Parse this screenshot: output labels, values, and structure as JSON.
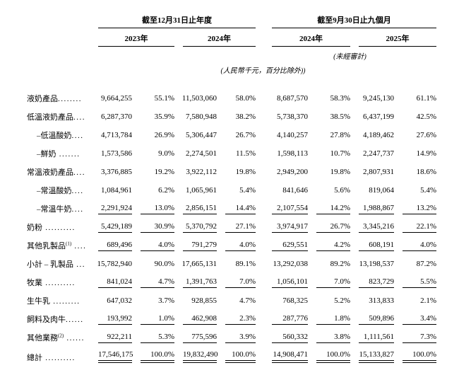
{
  "page": {
    "background": "#ffffff",
    "text_color": "#000000",
    "rule_color": "#000000"
  },
  "table": {
    "column_groups": [
      {
        "title": "截至12月31日止年度",
        "years": [
          "2023年",
          "2024年"
        ],
        "note": ""
      },
      {
        "title": "截至9月30日止九個月",
        "years": [
          "2024年",
          "2025年"
        ],
        "note": "(未經審計)"
      }
    ],
    "unit_note": "(人民幣千元，百分比除外))",
    "rows": [
      {
        "label": "液奶產品",
        "sup": "",
        "dots": "........",
        "indent": 0,
        "bold": true,
        "rule": "none",
        "values": [
          "9,664,255",
          "55.1%",
          "11,503,060",
          "58.0%",
          "8,687,570",
          "58.3%",
          "9,245,130",
          "61.1%"
        ]
      },
      {
        "label": "低溫液奶產品",
        "sup": "",
        "dots": "....",
        "indent": 0,
        "bold": false,
        "rule": "none",
        "values": [
          "6,287,370",
          "35.9%",
          "7,580,948",
          "38.2%",
          "5,738,370",
          "38.5%",
          "6,437,199",
          "42.5%"
        ]
      },
      {
        "label": "–低溫酸奶",
        "sup": "",
        "dots": "....",
        "indent": 1,
        "bold": false,
        "rule": "none",
        "values": [
          "4,713,784",
          "26.9%",
          "5,306,447",
          "26.7%",
          "4,140,257",
          "27.8%",
          "4,189,462",
          "27.6%"
        ]
      },
      {
        "label": "–鮮奶",
        "sup": "",
        "dots": " .......",
        "indent": 1,
        "bold": false,
        "rule": "none",
        "values": [
          "1,573,586",
          "9.0%",
          "2,274,501",
          "11.5%",
          "1,598,113",
          "10.7%",
          "2,247,737",
          "14.9%"
        ]
      },
      {
        "label": "常溫液奶產品",
        "sup": "",
        "dots": "....",
        "indent": 0,
        "bold": false,
        "rule": "none",
        "values": [
          "3,376,885",
          "19.2%",
          "3,922,112",
          "19.8%",
          "2,949,200",
          "19.8%",
          "2,807,931",
          "18.6%"
        ]
      },
      {
        "label": "–常溫酸奶",
        "sup": "",
        "dots": "....",
        "indent": 1,
        "bold": false,
        "rule": "none",
        "values": [
          "1,084,961",
          "6.2%",
          "1,065,961",
          "5.4%",
          "841,646",
          "5.6%",
          "819,064",
          "5.4%"
        ]
      },
      {
        "label": "–常溫牛奶",
        "sup": "",
        "dots": "....",
        "indent": 1,
        "bold": false,
        "rule": "single",
        "values": [
          "2,291,924",
          "13.0%",
          "2,856,151",
          "14.4%",
          "2,107,554",
          "14.2%",
          "1,988,867",
          "13.2%"
        ]
      },
      {
        "label": "奶粉",
        "sup": "",
        "dots": " ..........",
        "indent": 0,
        "bold": true,
        "rule": "single",
        "values": [
          "5,429,189",
          "30.9%",
          "5,370,792",
          "27.1%",
          "3,974,917",
          "26.7%",
          "3,345,216",
          "22.1%"
        ]
      },
      {
        "label": "其他乳製品",
        "sup": "(1)",
        "dots": " ....",
        "indent": 0,
        "bold": true,
        "rule": "single",
        "values": [
          "689,496",
          "4.0%",
          "791,279",
          "4.0%",
          "629,551",
          "4.2%",
          "608,191",
          "4.0%"
        ]
      },
      {
        "label": "小計 – 乳製品",
        "sup": "",
        "dots": " ...",
        "indent": 0,
        "bold": true,
        "rule": "none",
        "values": [
          "15,782,940",
          "90.0%",
          "17,665,131",
          "89.1%",
          "13,292,038",
          "89.2%",
          "13,198,537",
          "87.2%"
        ]
      },
      {
        "label": "牧業",
        "sup": "",
        "dots": " ..........",
        "indent": 0,
        "bold": true,
        "rule": "single",
        "values": [
          "841,024",
          "4.7%",
          "1,391,763",
          "7.0%",
          "1,056,101",
          "7.0%",
          "823,729",
          "5.5%"
        ]
      },
      {
        "label": "生牛乳",
        "sup": "",
        "dots": " .........",
        "indent": 0,
        "bold": false,
        "rule": "none",
        "values": [
          "647,032",
          "3.7%",
          "928,855",
          "4.7%",
          "768,325",
          "5.2%",
          "313,833",
          "2.1%"
        ]
      },
      {
        "label": "飼料及肉牛",
        "sup": "",
        "dots": "......",
        "indent": 0,
        "bold": false,
        "rule": "single",
        "values": [
          "193,992",
          "1.0%",
          "462,908",
          "2.3%",
          "287,776",
          "1.8%",
          "509,896",
          "3.4%"
        ]
      },
      {
        "label": "其他業務",
        "sup": "(2)",
        "dots": " ......",
        "indent": 0,
        "bold": true,
        "rule": "single",
        "values": [
          "922,211",
          "5.3%",
          "775,596",
          "3.9%",
          "560,332",
          "3.8%",
          "1,111,561",
          "7.3%"
        ]
      },
      {
        "label": "總計",
        "sup": "",
        "dots": " ..........",
        "indent": 0,
        "bold": true,
        "rule": "double",
        "values": [
          "17,546,175",
          "100.0%",
          "19,832,490",
          "100.0%",
          "14,908,471",
          "100.0%",
          "15,133,827",
          "100.0%"
        ]
      }
    ]
  }
}
